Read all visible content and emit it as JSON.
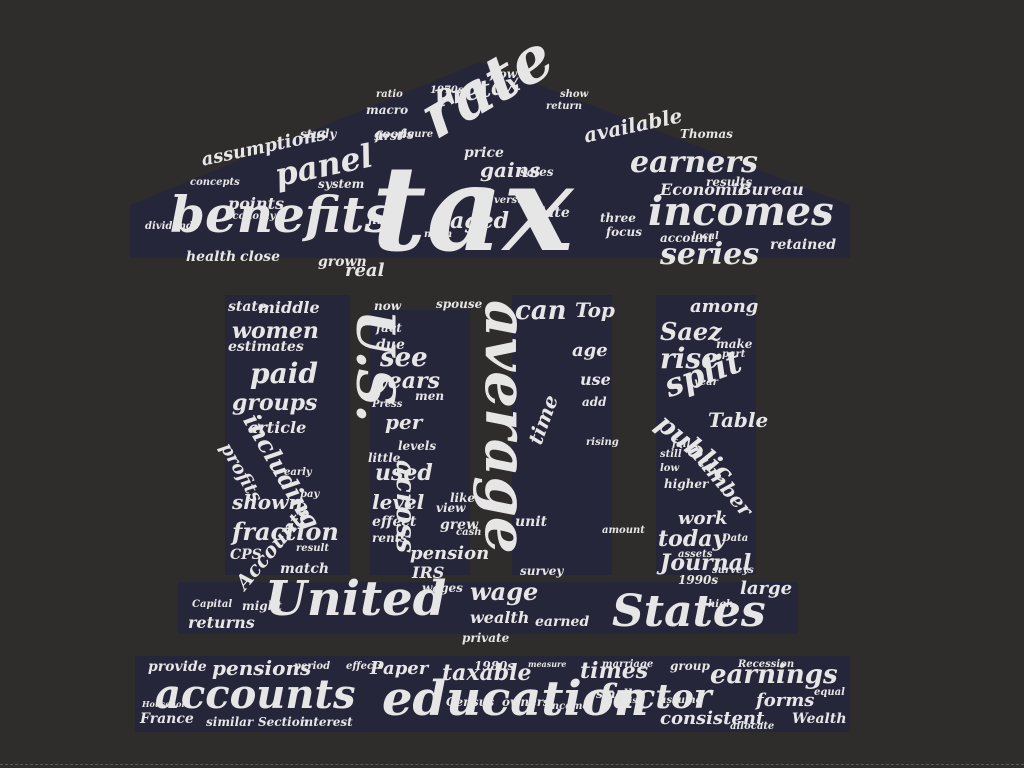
{
  "colors": {
    "background": "#2f2c2c",
    "shape_fill": "#26263a",
    "word": "#e6e6e6"
  },
  "word_cloud": {
    "shape": "bank-building-icon",
    "words": [
      "tax",
      "rate",
      "benefits",
      "incomes",
      "panel",
      "earners",
      "series",
      "Pretax",
      "available",
      "gains",
      "aged",
      "Economic",
      "Bureau",
      "assumptions",
      "points",
      "health",
      "close",
      "grown",
      "real",
      "retained",
      "average",
      "U.S.",
      "across",
      "see",
      "years",
      "per",
      "used",
      "level",
      "pension",
      "effect",
      "fraction",
      "shown",
      "groups",
      "paid",
      "women",
      "middle",
      "state",
      "article",
      "including",
      "profits",
      "estimates",
      "can",
      "Top",
      "Saez",
      "among",
      "rise",
      "split",
      "public",
      "number",
      "Table",
      "work",
      "today",
      "Journal",
      "age",
      "use",
      "fact",
      "now",
      "due",
      "levels",
      "men",
      "grew",
      "rents",
      "unit",
      "time",
      "United",
      "States",
      "wage",
      "wealth",
      "earned",
      "survey",
      "IRS",
      "wages",
      "match",
      "Accounts",
      "CPS",
      "returns",
      "large",
      "private",
      "education",
      "accounts",
      "factor",
      "earnings",
      "pensions",
      "provide",
      "Paper",
      "taxable",
      "times",
      "consistent",
      "forms",
      "Wealth",
      "France",
      "similar",
      "Section",
      "interest",
      "Census",
      "owners",
      "small",
      "group",
      "marriage",
      "1980s",
      "flow",
      "macro",
      "ratio",
      "goods",
      "study",
      "system",
      "economy",
      "dividends",
      "Thomas",
      "results",
      "account",
      "late",
      "three",
      "focus",
      "local",
      "first",
      "price",
      "return",
      "versus",
      "find",
      "main",
      "sales",
      "show",
      "1970s",
      "concepts",
      "figure",
      "part",
      "make",
      "year",
      "fall",
      "low",
      "still",
      "higher",
      "assets",
      "Data",
      "1990s",
      "surveys",
      "high",
      "amount",
      "rising",
      "add",
      "like",
      "view",
      "cash",
      "spouse",
      "little",
      "Press",
      "early",
      "pay",
      "result",
      "period",
      "might",
      "Capital",
      "Household",
      "assume",
      "allocate",
      "equal",
      "Recession",
      "effects",
      "measure",
      "basis",
      "income"
    ]
  }
}
